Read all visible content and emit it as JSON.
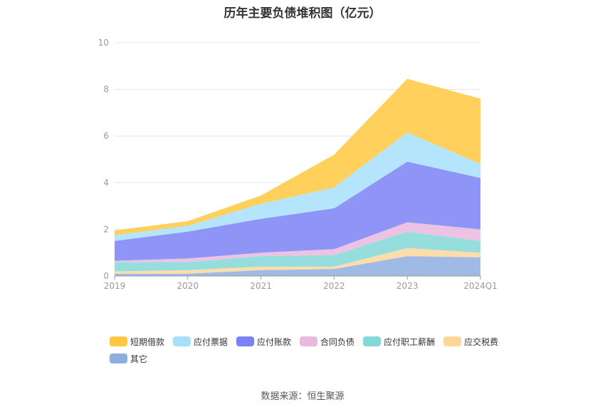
{
  "chart_data": {
    "type": "area",
    "title": "历年主要负债堆积图（亿元）",
    "categories": [
      "2019",
      "2020",
      "2021",
      "2022",
      "2023",
      "2024Q1"
    ],
    "ylim": [
      0,
      10
    ],
    "yticks": [
      "0",
      "2",
      "4",
      "6",
      "8",
      "10"
    ],
    "stacked": true,
    "grid": true,
    "legend_position": "bottom",
    "series": [
      {
        "name": "其它",
        "color": "#8eaee0",
        "values": [
          0.1,
          0.1,
          0.25,
          0.3,
          0.85,
          0.8
        ]
      },
      {
        "name": "应交税费",
        "color": "#fdd79a",
        "values": [
          0.1,
          0.15,
          0.15,
          0.1,
          0.35,
          0.2
        ]
      },
      {
        "name": "应付职工薪酬",
        "color": "#84d8d7",
        "values": [
          0.4,
          0.35,
          0.45,
          0.5,
          0.7,
          0.5
        ]
      },
      {
        "name": "合同负债",
        "color": "#eab9de",
        "values": [
          0.05,
          0.15,
          0.15,
          0.25,
          0.4,
          0.5
        ]
      },
      {
        "name": "应付账款",
        "color": "#7b82f6",
        "values": [
          0.85,
          1.15,
          1.45,
          1.75,
          2.6,
          2.2
        ]
      },
      {
        "name": "应付票据",
        "color": "#a7e0fb",
        "values": [
          0.25,
          0.25,
          0.65,
          0.9,
          1.25,
          0.6
        ]
      },
      {
        "name": "短期借款",
        "color": "#ffc840",
        "values": [
          0.2,
          0.2,
          0.35,
          1.4,
          2.3,
          2.8
        ]
      }
    ]
  },
  "legend": [
    {
      "name": "短期借款",
      "color": "#ffc840"
    },
    {
      "name": "应付票据",
      "color": "#a7e0fb"
    },
    {
      "name": "应付账款",
      "color": "#7b82f6"
    },
    {
      "name": "合同负债",
      "color": "#eab9de"
    },
    {
      "name": "应付职工薪酬",
      "color": "#84d8d7"
    },
    {
      "name": "应交税费",
      "color": "#fdd79a"
    },
    {
      "name": "其它",
      "color": "#8eaee0"
    }
  ],
  "source": "数据来源：恒生聚源"
}
